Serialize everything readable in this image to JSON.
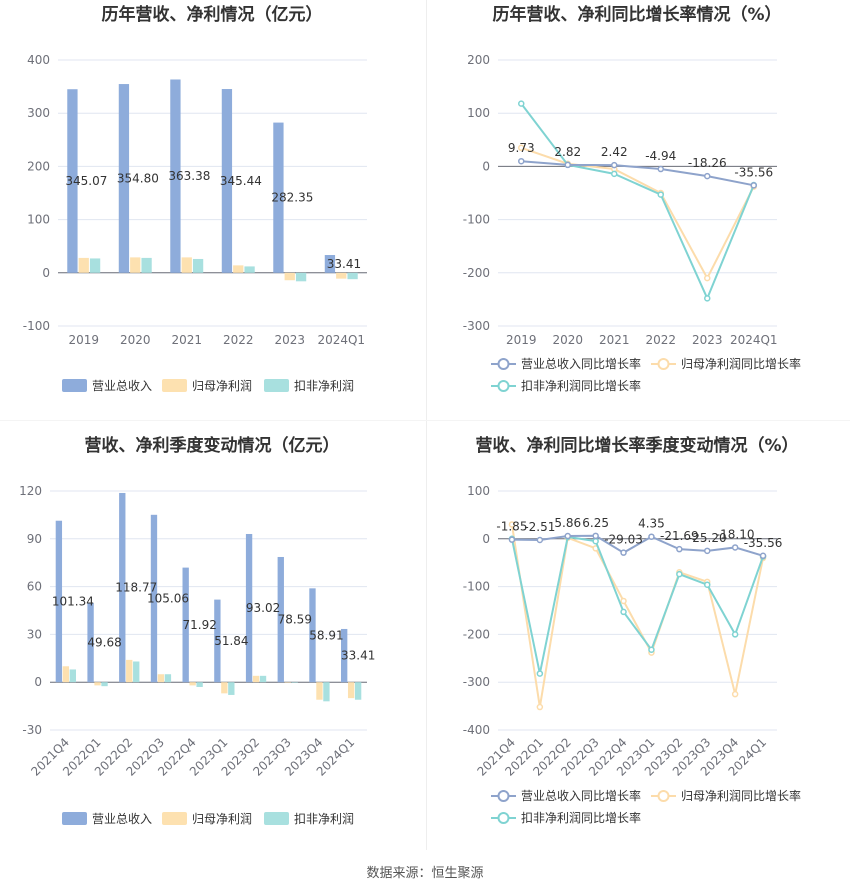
{
  "source": "数据来源：恒生聚源",
  "colors": {
    "revenue": "#8eacdb",
    "net_profit": "#fde1b0",
    "deducted_profit": "#a8e0df",
    "revenue_line": "#8ea3cb",
    "net_line": "#fcdcab",
    "deducted_line": "#7fd3d2"
  },
  "chart_data": [
    {
      "type": "bar",
      "title": "历年营收、净利情况（亿元）",
      "categories": [
        "2019",
        "2020",
        "2021",
        "2022",
        "2023",
        "2024Q1"
      ],
      "ylim": [
        -100,
        400
      ],
      "yticks": [
        "-100",
        "0",
        "100",
        "200",
        "300",
        "400"
      ],
      "series": [
        {
          "name": "营业总收入",
          "values": [
            345.07,
            354.8,
            363.38,
            345.44,
            282.35,
            33.41
          ],
          "labels": [
            "345.07",
            "354.80",
            "363.38",
            "345.44",
            "282.35",
            "33.41"
          ]
        },
        {
          "name": "归母净利润",
          "values": [
            28,
            29,
            29,
            14,
            -14,
            -11
          ]
        },
        {
          "name": "扣非净利润",
          "values": [
            27,
            28,
            26,
            12,
            -16,
            -12
          ]
        }
      ],
      "legend": "bottom"
    },
    {
      "type": "line",
      "title": "历年营收、净利同比增长率情况（%）",
      "categories": [
        "2019",
        "2020",
        "2021",
        "2022",
        "2023",
        "2024Q1"
      ],
      "ylim": [
        -300,
        200
      ],
      "yticks": [
        "-300",
        "-200",
        "-100",
        "0",
        "100",
        "200"
      ],
      "series": [
        {
          "name": "营业总收入同比增长率",
          "values": [
            9.73,
            2.82,
            2.42,
            -4.94,
            -18.26,
            -35.56
          ],
          "labels": [
            "9.73",
            "2.82",
            "2.42",
            "-4.94",
            "-18.26",
            "-35.56"
          ]
        },
        {
          "name": "归母净利润同比增长率",
          "values": [
            35,
            5,
            -5,
            -50,
            -210,
            -38
          ]
        },
        {
          "name": "扣非净利润同比增长率",
          "values": [
            118,
            3,
            -14,
            -53,
            -248,
            -35
          ]
        }
      ],
      "legend": "bottom"
    },
    {
      "type": "bar",
      "title": "营收、净利季度变动情况（亿元）",
      "categories": [
        "2021Q4",
        "2022Q1",
        "2022Q2",
        "2022Q3",
        "2022Q4",
        "2023Q1",
        "2023Q2",
        "2023Q3",
        "2023Q4",
        "2024Q1"
      ],
      "ylim": [
        -30,
        120
      ],
      "yticks": [
        "-30",
        "0",
        "30",
        "60",
        "90",
        "120"
      ],
      "series": [
        {
          "name": "营业总收入",
          "values": [
            101.34,
            49.68,
            118.77,
            105.06,
            71.92,
            51.84,
            93.02,
            78.59,
            58.91,
            33.41
          ],
          "labels": [
            "101.34",
            "49.68",
            "118.77",
            "105.06",
            "71.92",
            "51.84",
            "93.02",
            "78.59",
            "58.91",
            "33.41"
          ]
        },
        {
          "name": "归母净利润",
          "values": [
            10,
            -2,
            14,
            5,
            -2,
            -7,
            4,
            0,
            -11,
            -10
          ]
        },
        {
          "name": "扣非净利润",
          "values": [
            8,
            -2.5,
            13,
            5,
            -3,
            -8,
            4,
            0,
            -12,
            -11
          ]
        }
      ],
      "legend": "bottom"
    },
    {
      "type": "line",
      "title": "营收、净利同比增长率季度变动情况（%）",
      "categories": [
        "2021Q4",
        "2022Q1",
        "2022Q2",
        "2022Q3",
        "2022Q4",
        "2023Q1",
        "2023Q2",
        "2023Q3",
        "2023Q4",
        "2024Q1"
      ],
      "ylim": [
        -400,
        100
      ],
      "yticks": [
        "-400",
        "-300",
        "-200",
        "-100",
        "0",
        "100"
      ],
      "series": [
        {
          "name": "营业总收入同比增长率",
          "values": [
            -1.85,
            -2.51,
            5.86,
            6.25,
            -29.03,
            4.35,
            -21.69,
            -25.2,
            -18.1,
            -35.56
          ],
          "labels": [
            "-1.85",
            "-2.51",
            "5.86",
            "6.25",
            "-29.03",
            "4.35",
            "-21.69",
            "-25.20",
            "-18.10",
            "-35.56"
          ]
        },
        {
          "name": "归母净利润同比增长率",
          "values": [
            30,
            -352,
            2,
            -20,
            -130,
            -238,
            -70,
            -90,
            -325,
            -40
          ]
        },
        {
          "name": "扣非净利润同比增长率",
          "values": [
            0,
            -282,
            4,
            -5,
            -153,
            -232,
            -74,
            -96,
            -200,
            -37
          ]
        }
      ],
      "legend": "bottom"
    }
  ]
}
